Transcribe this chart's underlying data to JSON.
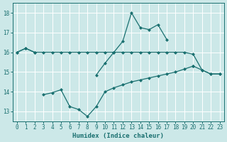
{
  "x": [
    0,
    1,
    2,
    3,
    4,
    5,
    6,
    7,
    8,
    9,
    10,
    11,
    12,
    13,
    14,
    15,
    16,
    17,
    18,
    19,
    20,
    21,
    22,
    23
  ],
  "line_flat": [
    16.0,
    16.2,
    16.0,
    16.0,
    16.0,
    16.0,
    16.0,
    16.0,
    16.0,
    16.0,
    16.0,
    16.0,
    16.0,
    16.0,
    16.0,
    16.0,
    16.0,
    16.0,
    16.0,
    16.0,
    15.9,
    15.1,
    14.9,
    14.9
  ],
  "line_jagged": [
    16.0,
    16.2,
    16.0,
    null,
    null,
    null,
    null,
    null,
    null,
    14.85,
    15.45,
    16.0,
    16.55,
    18.0,
    17.25,
    17.15,
    17.4,
    16.65,
    null,
    null,
    15.3,
    15.1,
    14.9,
    14.9
  ],
  "line_lower": [
    null,
    null,
    null,
    13.85,
    13.95,
    14.1,
    13.25,
    13.1,
    12.75,
    13.25,
    14.0,
    14.2,
    14.35,
    14.5,
    14.6,
    14.7,
    14.8,
    14.9,
    15.0,
    15.15,
    15.3,
    null,
    null,
    null
  ],
  "bg_color": "#cce8e8",
  "line_color": "#1a7070",
  "grid_color": "#b0d8d8",
  "xlabel": "Humidex (Indice chaleur)",
  "ylim": [
    12.5,
    18.5
  ],
  "xlim": [
    -0.5,
    23.5
  ],
  "yticks": [
    13,
    14,
    15,
    16,
    17,
    18
  ],
  "xticks": [
    0,
    1,
    2,
    3,
    4,
    5,
    6,
    7,
    8,
    9,
    10,
    11,
    12,
    13,
    14,
    15,
    16,
    17,
    18,
    19,
    20,
    21,
    22,
    23
  ]
}
